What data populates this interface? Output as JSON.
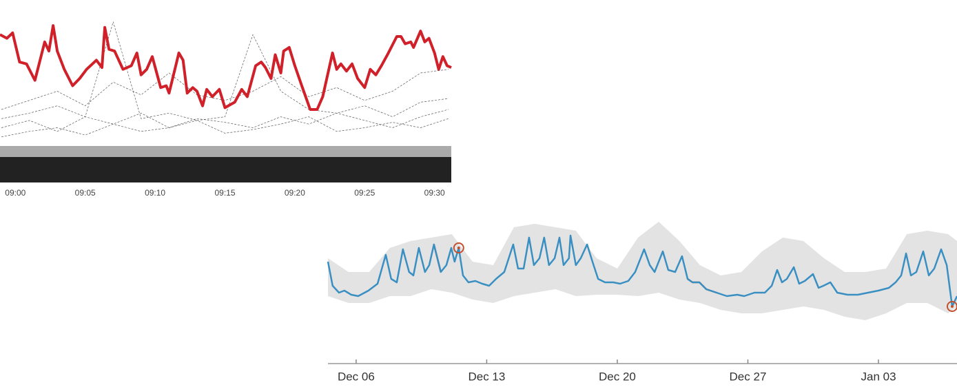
{
  "chart_data": [
    {
      "type": "line",
      "xlim": [
        -1.1,
        31.2
      ],
      "ylim": [
        0,
        100
      ],
      "xticks": [
        {
          "value": 0,
          "label": "09:00"
        },
        {
          "value": 5,
          "label": "09:05"
        },
        {
          "value": 10,
          "label": "09:10"
        },
        {
          "value": 15,
          "label": "09:15"
        },
        {
          "value": 20,
          "label": "09:20"
        },
        {
          "value": 25,
          "label": "09:25"
        },
        {
          "value": 30,
          "label": "09:30"
        }
      ],
      "series": [
        {
          "color": "#d0212a",
          "style": "solid",
          "x": [
            -1.1,
            -0.6,
            -0.2,
            0.3,
            0.8,
            1.4,
            2.1,
            2.4,
            2.7,
            3.0,
            3.5,
            4.1,
            4.6,
            5.1,
            5.8,
            6.2,
            6.4,
            6.7,
            7.1,
            7.7,
            8.3,
            8.7,
            9.0,
            9.4,
            9.8,
            10.4,
            10.8,
            11.0,
            11.7,
            12.0,
            12.3,
            12.7,
            13.0,
            13.4,
            13.7,
            14.1,
            14.6,
            15.0,
            15.7,
            16.2,
            16.6,
            17.2,
            17.6,
            17.9,
            18.3,
            18.6,
            19.0,
            19.2,
            19.6,
            20.0,
            20.5,
            21.1,
            21.6,
            22.0,
            22.7,
            23.0,
            23.3,
            23.7,
            24.1,
            24.5,
            25.0,
            25.4,
            25.8,
            26.2,
            26.7,
            27.3,
            27.6,
            27.9,
            28.3,
            28.5,
            29.0,
            29.3,
            29.6,
            30.0,
            30.3,
            30.6,
            30.9,
            31.2
          ],
          "values": [
            81,
            79,
            82,
            66,
            65,
            56,
            77,
            72,
            86,
            72,
            62,
            53,
            57,
            62,
            67,
            63,
            85,
            73,
            72,
            62,
            64,
            71,
            59,
            62,
            69,
            52,
            53,
            49,
            71,
            67,
            49,
            52,
            50,
            42,
            51,
            47,
            51,
            41,
            44,
            51,
            47,
            64,
            66,
            63,
            57,
            70,
            60,
            72,
            74,
            64,
            53,
            40,
            40,
            47,
            71,
            62,
            65,
            61,
            65,
            57,
            52,
            62,
            59,
            64,
            71,
            80,
            80,
            76,
            77,
            74,
            83,
            77,
            79,
            71,
            62,
            69,
            64,
            63
          ]
        },
        {
          "color": "#333333",
          "style": "dashed",
          "x": [
            -1,
            1,
            3,
            5,
            7,
            9,
            11,
            13,
            15,
            17,
            19,
            21,
            23,
            25,
            27,
            29,
            31
          ],
          "values": [
            40,
            45,
            50,
            42,
            55,
            48,
            60,
            48,
            45,
            50,
            58,
            47,
            52,
            45,
            50,
            60,
            62
          ]
        },
        {
          "color": "#333333",
          "style": "dashed",
          "x": [
            -1,
            1,
            3,
            5,
            7,
            9,
            11,
            13,
            15,
            17,
            19,
            21,
            23,
            25,
            27,
            29,
            31
          ],
          "values": [
            35,
            38,
            42,
            36,
            88,
            35,
            38,
            34,
            36,
            81,
            50,
            40,
            38,
            42,
            36,
            44,
            46
          ]
        },
        {
          "color": "#333333",
          "style": "dashed",
          "x": [
            -1,
            1,
            3,
            5,
            7,
            9,
            11,
            13,
            15,
            17,
            19,
            21,
            23,
            25,
            27,
            29,
            31
          ],
          "values": [
            30,
            34,
            28,
            36,
            32,
            38,
            30,
            35,
            33,
            30,
            36,
            32,
            38,
            34,
            30,
            36,
            40
          ]
        },
        {
          "color": "#333333",
          "style": "dashed",
          "x": [
            -1,
            1,
            3,
            5,
            7,
            9,
            11,
            13,
            15,
            17,
            19,
            21,
            23,
            25,
            27,
            29,
            31
          ],
          "values": [
            25,
            28,
            30,
            26,
            32,
            28,
            30,
            34,
            27,
            29,
            32,
            36,
            28,
            30,
            33,
            30,
            35
          ]
        }
      ]
    },
    {
      "type": "line",
      "xlim": [
        -1.51,
        32.21
      ],
      "ylim": [
        0,
        208
      ],
      "xticks": [
        {
          "value": 0,
          "label": "Dec 06"
        },
        {
          "value": 7,
          "label": "Dec 13"
        },
        {
          "value": 14,
          "label": "Dec 20"
        },
        {
          "value": 21,
          "label": "Dec 27"
        },
        {
          "value": 28,
          "label": "Jan 03"
        }
      ],
      "band": {
        "color": "#e3e3e3",
        "x": [
          -1.51,
          -0.41,
          0.7,
          1.81,
          2.92,
          4.03,
          5.13,
          6.24,
          7.35,
          8.46,
          9.57,
          10.68,
          11.78,
          12.89,
          14.0,
          15.11,
          16.22,
          17.33,
          18.43,
          19.54,
          20.65,
          21.76,
          22.87,
          23.98,
          25.08,
          26.19,
          27.3,
          28.41,
          29.52,
          30.62,
          31.73,
          32.21
        ],
        "upper": [
          153,
          133,
          133,
          168,
          178,
          183,
          188,
          148,
          143,
          198,
          203,
          198,
          193,
          153,
          138,
          183,
          206,
          178,
          143,
          128,
          133,
          163,
          183,
          178,
          153,
          133,
          133,
          138,
          188,
          193,
          188,
          178
        ],
        "lower": [
          98,
          88,
          88,
          98,
          98,
          108,
          103,
          93,
          88,
          98,
          103,
          108,
          98,
          100,
          100,
          98,
          103,
          93,
          88,
          78,
          73,
          73,
          78,
          83,
          78,
          68,
          63,
          73,
          88,
          88,
          73,
          83
        ]
      },
      "series": [
        {
          "color": "#3a8fc2",
          "style": "solid",
          "x": [
            -1.51,
            -1.26,
            -0.92,
            -0.63,
            -0.26,
            0.11,
            0.66,
            1.15,
            1.59,
            1.88,
            2.18,
            2.51,
            2.84,
            3.07,
            3.36,
            3.69,
            3.92,
            4.17,
            4.54,
            4.84,
            5.1,
            5.28,
            5.5,
            5.73,
            6.02,
            6.39,
            6.76,
            7.13,
            7.5,
            7.94,
            8.42,
            8.68,
            8.98,
            9.27,
            9.53,
            9.83,
            10.08,
            10.34,
            10.64,
            10.9,
            11.12,
            11.41,
            11.49,
            11.78,
            12.04,
            12.38,
            12.67,
            12.97,
            13.34,
            13.78,
            14.15,
            14.59,
            14.96,
            15.44,
            15.74,
            16.0,
            16.44,
            16.73,
            17.1,
            17.47,
            17.77,
            18.03,
            18.4,
            18.77,
            19.32,
            19.87,
            20.43,
            20.8,
            21.35,
            21.91,
            22.28,
            22.57,
            22.83,
            23.09,
            23.46,
            23.75,
            24.05,
            24.49,
            24.79,
            25.05,
            25.42,
            25.79,
            26.34,
            26.89,
            27.45,
            28.0,
            28.56,
            28.92,
            29.22,
            29.48,
            29.74,
            30.03,
            30.4,
            30.7,
            30.99,
            31.36,
            31.66,
            31.95,
            32.21
          ],
          "values": [
            148,
            113,
            103,
            106,
            100,
            98,
            106,
            116,
            158,
            123,
            118,
            166,
            133,
            128,
            168,
            133,
            143,
            173,
            133,
            143,
            168,
            148,
            168,
            128,
            118,
            120,
            116,
            113,
            123,
            133,
            173,
            138,
            138,
            183,
            143,
            153,
            183,
            143,
            153,
            183,
            143,
            153,
            186,
            143,
            153,
            173,
            148,
            123,
            118,
            118,
            116,
            120,
            133,
            166,
            143,
            133,
            163,
            136,
            133,
            156,
            123,
            118,
            118,
            108,
            103,
            98,
            100,
            98,
            103,
            103,
            113,
            136,
            118,
            123,
            140,
            116,
            120,
            130,
            110,
            113,
            118,
            103,
            100,
            100,
            103,
            106,
            110,
            118,
            128,
            160,
            128,
            133,
            163,
            128,
            138,
            166,
            143,
            83,
            98
          ]
        },
        {
          "color": "#c0502e",
          "style": "solid",
          "x": [
            4.17,
            4.54
          ],
          "values": [
            173,
            133
          ]
        },
        {
          "color": "#c0502e",
          "style": "solid",
          "x": [
            17.77,
            18.03,
            18.4,
            18.77,
            19.32
          ],
          "values": [
            123,
            118,
            118,
            108,
            103
          ]
        }
      ],
      "anomalies": {
        "color": "#c0502e",
        "x": [
          5.5,
          31.95
        ],
        "values": [
          168,
          83
        ]
      }
    }
  ]
}
